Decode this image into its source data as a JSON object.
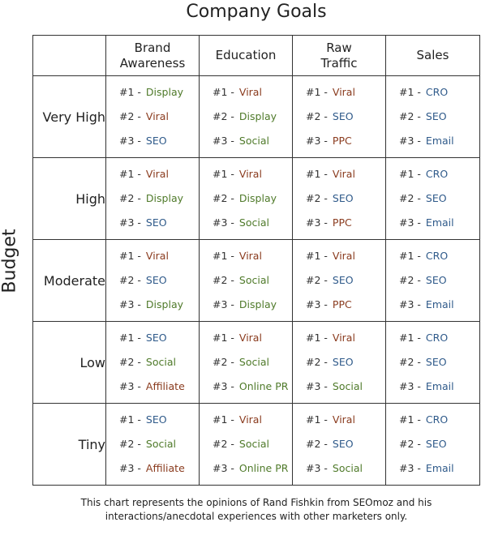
{
  "title": "Company Goals",
  "side_label": "Budget",
  "columns": [
    "",
    "Brand\nAwareness",
    "Education",
    "Raw\nTraffic",
    "Sales"
  ],
  "colors": {
    "Display": "#4f7a2a",
    "Social": "#4f7a2a",
    "Online PR": "#4f7a2a",
    "Viral": "#8a3b1e",
    "PPC": "#8a3b1e",
    "Affiliate": "#8a3b1e",
    "SEO": "#2f5a8a",
    "CRO": "#2f5a8a",
    "Email": "#2f5a8a"
  },
  "rows": [
    {
      "label": "Very High",
      "cells": [
        [
          {
            "num": "#1 -",
            "tactic": "Display"
          },
          {
            "num": "#2 -",
            "tactic": "Viral"
          },
          {
            "num": "#3 -",
            "tactic": "SEO"
          }
        ],
        [
          {
            "num": "#1 -",
            "tactic": "Viral"
          },
          {
            "num": "#2 -",
            "tactic": "Display"
          },
          {
            "num": "#3 -",
            "tactic": "Social"
          }
        ],
        [
          {
            "num": "#1 -",
            "tactic": "Viral"
          },
          {
            "num": "#2 -",
            "tactic": "SEO"
          },
          {
            "num": "#3 -",
            "tactic": "PPC"
          }
        ],
        [
          {
            "num": "#1 -",
            "tactic": "CRO"
          },
          {
            "num": "#2 -",
            "tactic": "SEO"
          },
          {
            "num": "#3 -",
            "tactic": "Email"
          }
        ]
      ]
    },
    {
      "label": "High",
      "cells": [
        [
          {
            "num": "#1 -",
            "tactic": "Viral"
          },
          {
            "num": "#2 -",
            "tactic": "Display"
          },
          {
            "num": "#3 -",
            "tactic": "SEO"
          }
        ],
        [
          {
            "num": "#1 -",
            "tactic": "Viral"
          },
          {
            "num": "#2 -",
            "tactic": "Display"
          },
          {
            "num": "#3 -",
            "tactic": "Social"
          }
        ],
        [
          {
            "num": "#1 -",
            "tactic": "Viral"
          },
          {
            "num": "#2 -",
            "tactic": "SEO"
          },
          {
            "num": "#3 -",
            "tactic": "PPC"
          }
        ],
        [
          {
            "num": "#1 -",
            "tactic": "CRO"
          },
          {
            "num": "#2 -",
            "tactic": "SEO"
          },
          {
            "num": "#3 -",
            "tactic": "Email"
          }
        ]
      ]
    },
    {
      "label": "Moderate",
      "cells": [
        [
          {
            "num": "#1 -",
            "tactic": "Viral"
          },
          {
            "num": "#2 -",
            "tactic": "SEO"
          },
          {
            "num": "#3 -",
            "tactic": "Display"
          }
        ],
        [
          {
            "num": "#1 -",
            "tactic": "Viral"
          },
          {
            "num": "#2 -",
            "tactic": "Social"
          },
          {
            "num": "#3 -",
            "tactic": "Display"
          }
        ],
        [
          {
            "num": "#1 -",
            "tactic": "Viral"
          },
          {
            "num": "#2 -",
            "tactic": "SEO"
          },
          {
            "num": "#3 -",
            "tactic": "PPC"
          }
        ],
        [
          {
            "num": "#1 -",
            "tactic": "CRO"
          },
          {
            "num": "#2 -",
            "tactic": "SEO"
          },
          {
            "num": "#3 -",
            "tactic": "Email"
          }
        ]
      ]
    },
    {
      "label": "Low",
      "cells": [
        [
          {
            "num": "#1 -",
            "tactic": "SEO"
          },
          {
            "num": "#2 -",
            "tactic": "Social"
          },
          {
            "num": "#3 -",
            "tactic": "Affiliate"
          }
        ],
        [
          {
            "num": "#1 -",
            "tactic": "Viral"
          },
          {
            "num": "#2 -",
            "tactic": "Social"
          },
          {
            "num": "#3 -",
            "tactic": "Online PR"
          }
        ],
        [
          {
            "num": "#1 -",
            "tactic": "Viral"
          },
          {
            "num": "#2 -",
            "tactic": "SEO"
          },
          {
            "num": "#3 -",
            "tactic": "Social"
          }
        ],
        [
          {
            "num": "#1 -",
            "tactic": "CRO"
          },
          {
            "num": "#2 -",
            "tactic": "SEO"
          },
          {
            "num": "#3 -",
            "tactic": "Email"
          }
        ]
      ]
    },
    {
      "label": "Tiny",
      "cells": [
        [
          {
            "num": "#1 -",
            "tactic": "SEO"
          },
          {
            "num": "#2 -",
            "tactic": "Social"
          },
          {
            "num": "#3 -",
            "tactic": "Affiliate"
          }
        ],
        [
          {
            "num": "#1 -",
            "tactic": "Viral"
          },
          {
            "num": "#2 -",
            "tactic": "Social"
          },
          {
            "num": "#3 -",
            "tactic": "Online PR"
          }
        ],
        [
          {
            "num": "#1 -",
            "tactic": "Viral"
          },
          {
            "num": "#2 -",
            "tactic": "SEO"
          },
          {
            "num": "#3 -",
            "tactic": "Social"
          }
        ],
        [
          {
            "num": "#1 -",
            "tactic": "CRO"
          },
          {
            "num": "#2 -",
            "tactic": "SEO"
          },
          {
            "num": "#3 -",
            "tactic": "Email"
          }
        ]
      ]
    }
  ],
  "footnote": "This chart represents the opinions of Rand Fishkin from SEOmoz and his\ninteractions/anecdotal experiences with other marketers only."
}
